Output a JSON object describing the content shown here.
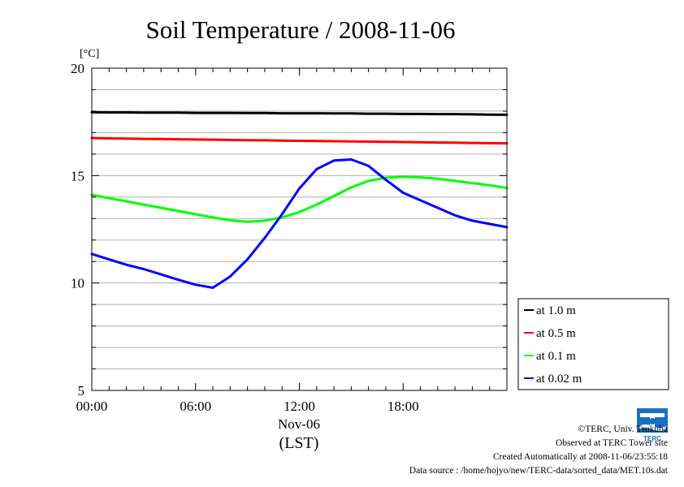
{
  "page": {
    "title": "Soil Temperature / 2008-11-06",
    "y_unit": "[°C]",
    "x_label_date": "Nov-06",
    "x_label_tz": "(LST)"
  },
  "credits": {
    "copyright": "©TERC, Univ. Tsukuba",
    "observed": "Observed at TERC Tower site",
    "created": "Created Automatically at 2008-11-06/23:55:18",
    "source": "Data source : /home/hojyo/new/TERC-data/sorted_data/MET.10s.dat",
    "logo_text": "TERC"
  },
  "chart_data": {
    "type": "line",
    "title": "Soil Temperature / 2008-11-06",
    "xlabel": "Nov-06",
    "ylabel": "[°C]",
    "xlim": [
      0,
      24
    ],
    "ylim": [
      5,
      20
    ],
    "x_ticks": [
      0,
      6,
      12,
      18
    ],
    "x_tick_labels": [
      "00:00",
      "06:00",
      "12:00",
      "18:00"
    ],
    "y_ticks": [
      5,
      10,
      15,
      20
    ],
    "y_tick_labels": [
      "5",
      "10",
      "15",
      "20"
    ],
    "grid": true,
    "legend_position": "right-bottom",
    "x": [
      0,
      1,
      2,
      3,
      4,
      5,
      6,
      7,
      8,
      9,
      10,
      11,
      12,
      13,
      14,
      15,
      16,
      17,
      18,
      19,
      20,
      21,
      22,
      23,
      24
    ],
    "series": [
      {
        "name": "at 1.0 m",
        "color": "#000000",
        "values": [
          17.95,
          17.94,
          17.94,
          17.93,
          17.93,
          17.93,
          17.92,
          17.92,
          17.92,
          17.91,
          17.91,
          17.9,
          17.9,
          17.9,
          17.89,
          17.89,
          17.88,
          17.88,
          17.87,
          17.87,
          17.86,
          17.86,
          17.85,
          17.84,
          17.83
        ]
      },
      {
        "name": "at 0.5 m",
        "color": "#ff0000",
        "values": [
          16.75,
          16.73,
          16.72,
          16.71,
          16.7,
          16.69,
          16.68,
          16.67,
          16.66,
          16.65,
          16.64,
          16.63,
          16.62,
          16.61,
          16.6,
          16.59,
          16.58,
          16.57,
          16.56,
          16.55,
          16.54,
          16.53,
          16.52,
          16.51,
          16.5
        ]
      },
      {
        "name": "at 0.1 m",
        "color": "#00ff00",
        "values": [
          14.1,
          13.95,
          13.8,
          13.65,
          13.5,
          13.35,
          13.2,
          13.05,
          12.92,
          12.85,
          12.9,
          13.05,
          13.3,
          13.65,
          14.05,
          14.45,
          14.75,
          14.9,
          14.95,
          14.92,
          14.85,
          14.75,
          14.65,
          14.55,
          14.42
        ]
      },
      {
        "name": "at 0.02 m",
        "color": "#0000ff",
        "values": [
          11.35,
          11.1,
          10.85,
          10.65,
          10.4,
          10.15,
          9.92,
          9.78,
          10.3,
          11.1,
          12.1,
          13.2,
          14.4,
          15.3,
          15.7,
          15.75,
          15.45,
          14.8,
          14.2,
          13.85,
          13.5,
          13.15,
          12.9,
          12.75,
          12.6
        ]
      }
    ]
  }
}
